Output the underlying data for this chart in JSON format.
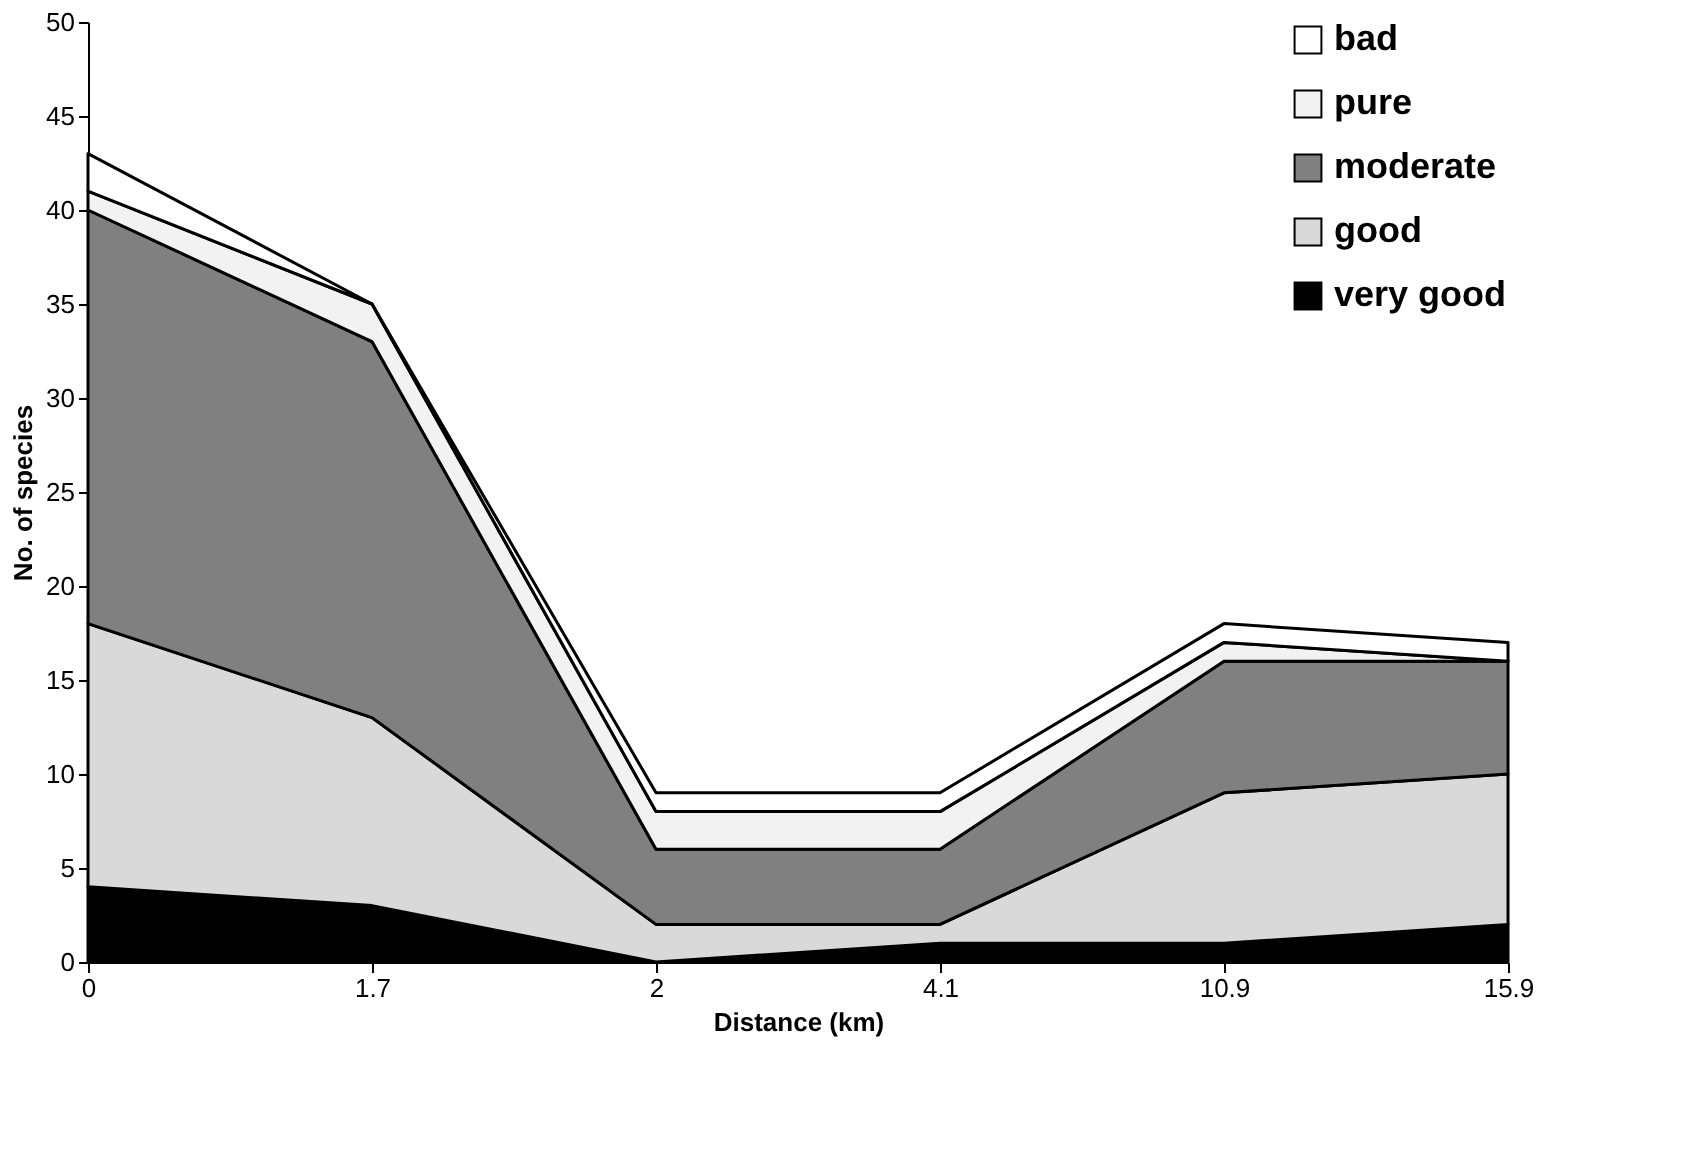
{
  "chart_data": {
    "type": "area",
    "stacked": true,
    "xlabel": "Distance (km)",
    "ylabel": "No. of species",
    "categories": [
      "0",
      "1.7",
      "2",
      "4.1",
      "10.9",
      "15.9"
    ],
    "series": [
      {
        "name": "very good",
        "color": "#000000",
        "values": [
          4,
          3,
          0,
          1,
          1,
          2
        ]
      },
      {
        "name": "good",
        "color": "#d9d9d9",
        "values": [
          14,
          10,
          2,
          1,
          8,
          8
        ]
      },
      {
        "name": "moderate",
        "color": "#808080",
        "values": [
          22,
          20,
          4,
          4,
          7,
          6
        ]
      },
      {
        "name": "pure",
        "color": "#f2f2f2",
        "values": [
          1,
          2,
          2,
          2,
          1,
          0
        ]
      },
      {
        "name": "bad",
        "color": "#ffffff",
        "values": [
          2,
          0,
          1,
          1,
          1,
          1
        ]
      }
    ],
    "ylim": [
      0,
      50
    ],
    "yticks": [
      0,
      5,
      10,
      15,
      20,
      25,
      30,
      35,
      40,
      45,
      50
    ],
    "grid": false,
    "legend": "top right"
  }
}
